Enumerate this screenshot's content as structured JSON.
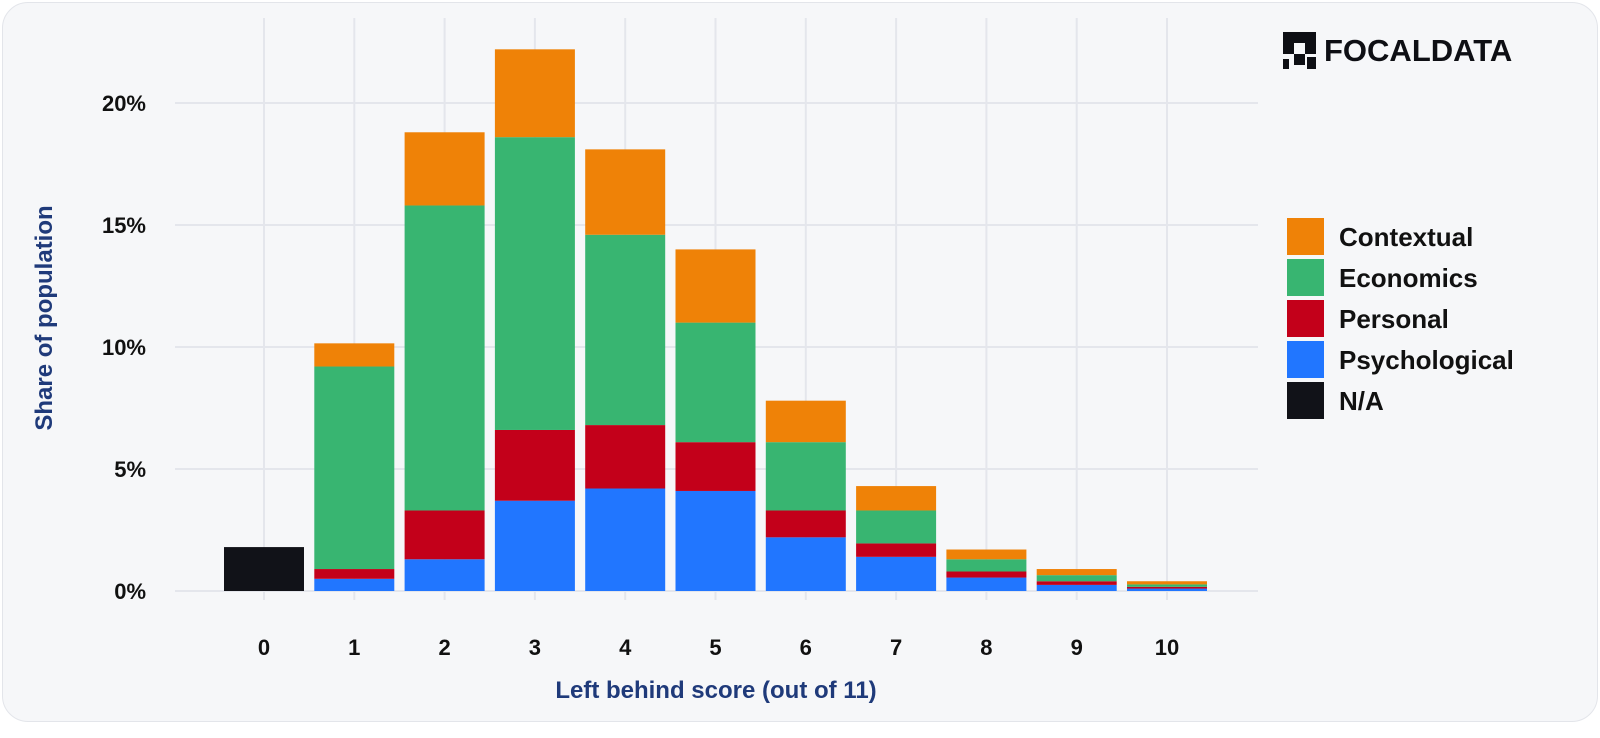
{
  "brand": {
    "name": "FOCALDATA",
    "icon": "focaldata-logo-icon"
  },
  "chart_data": {
    "type": "bar",
    "stacked": true,
    "xlabel": "Left behind score (out of 11)",
    "ylabel": "Share of population",
    "categories": [
      "0",
      "1",
      "2",
      "3",
      "4",
      "5",
      "6",
      "7",
      "8",
      "9",
      "10"
    ],
    "y_ticks": [
      "0%",
      "5%",
      "10%",
      "15%",
      "20%"
    ],
    "ylim": [
      0,
      22.5
    ],
    "grid": true,
    "legend_position": "right",
    "series": [
      {
        "name": "N/A",
        "color": "#111218",
        "values": [
          1.8,
          0,
          0,
          0,
          0,
          0,
          0,
          0,
          0,
          0,
          0
        ]
      },
      {
        "name": "Psychological",
        "color": "#2176ff",
        "values": [
          0,
          0.5,
          1.3,
          3.7,
          4.2,
          4.1,
          2.2,
          1.4,
          0.55,
          0.25,
          0.1
        ]
      },
      {
        "name": "Personal",
        "color": "#c3001a",
        "values": [
          0,
          0.4,
          2.0,
          2.9,
          2.6,
          2.0,
          1.1,
          0.55,
          0.25,
          0.15,
          0.07
        ]
      },
      {
        "name": "Economics",
        "color": "#38b571",
        "values": [
          0,
          8.3,
          12.5,
          12.0,
          7.8,
          4.9,
          2.8,
          1.35,
          0.5,
          0.25,
          0.1
        ]
      },
      {
        "name": "Contextual",
        "color": "#ef8207",
        "values": [
          0,
          0.95,
          3.0,
          3.6,
          3.5,
          3.0,
          1.7,
          1.0,
          0.4,
          0.25,
          0.13
        ]
      }
    ],
    "legend": [
      "Contextual",
      "Economics",
      "Personal",
      "Psychological",
      "N/A"
    ]
  }
}
